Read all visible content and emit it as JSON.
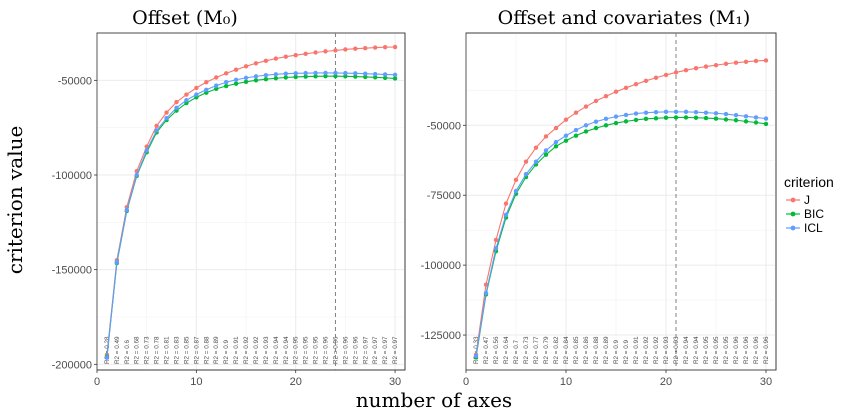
{
  "xlabel": "number of axes",
  "ylabel": "criterion value",
  "legend": {
    "title": "criterion",
    "entries": [
      {
        "name": "J",
        "color": "#F8766D"
      },
      {
        "name": "BIC",
        "color": "#00BA38"
      },
      {
        "name": "ICL",
        "color": "#619CFF"
      }
    ]
  },
  "chart_data": [
    {
      "type": "line",
      "title": "Offset (M₀)",
      "xlabel": "number of axes",
      "ylabel": "criterion value",
      "xlim": [
        0,
        31
      ],
      "ylim": [
        -203000,
        -25000
      ],
      "x_ticks": [
        0,
        10,
        20,
        30
      ],
      "y_ticks": [
        -200000,
        -150000,
        -100000,
        -50000
      ],
      "y_tick_labels": [
        "-200000",
        "-150000",
        "-100000",
        "-50000"
      ],
      "grid": true,
      "vline_x": 24,
      "x": [
        1,
        2,
        3,
        4,
        5,
        6,
        7,
        8,
        9,
        10,
        11,
        12,
        13,
        14,
        15,
        16,
        17,
        18,
        19,
        20,
        21,
        22,
        23,
        24,
        25,
        26,
        27,
        28,
        29,
        30
      ],
      "series": [
        {
          "name": "J",
          "color": "#F8766D",
          "values": [
            -195000,
            -145000,
            -117000,
            -98000,
            -85000,
            -74000,
            -67000,
            -61500,
            -57500,
            -54000,
            -51000,
            -48500,
            -46300,
            -44400,
            -42600,
            -41000,
            -39700,
            -38500,
            -37500,
            -36700,
            -36000,
            -35300,
            -34700,
            -34200,
            -33700,
            -33300,
            -33000,
            -32700,
            -32500,
            -32400
          ]
        },
        {
          "name": "BIC",
          "color": "#00BA38",
          "values": [
            -196000,
            -146500,
            -119000,
            -100500,
            -88000,
            -77500,
            -71000,
            -66000,
            -62000,
            -59000,
            -56500,
            -54500,
            -53000,
            -51800,
            -50800,
            -50000,
            -49400,
            -48900,
            -48500,
            -48200,
            -48000,
            -47900,
            -47800,
            -47800,
            -47900,
            -48000,
            -48200,
            -48400,
            -48700,
            -49000
          ]
        },
        {
          "name": "ICL",
          "color": "#619CFF",
          "values": [
            -196500,
            -146000,
            -118500,
            -100000,
            -87000,
            -76500,
            -70000,
            -64500,
            -60500,
            -57500,
            -55000,
            -52800,
            -51000,
            -49700,
            -48700,
            -47900,
            -47300,
            -46800,
            -46500,
            -46300,
            -46200,
            -46100,
            -46100,
            -46100,
            -46200,
            -46300,
            -46500,
            -46700,
            -46900,
            -47100
          ]
        }
      ],
      "r2_labels": [
        "R2 = 0.28",
        "R2 = 0.49",
        "R2 = 0.6",
        "R2 = 0.68",
        "R2 = 0.73",
        "R2 = 0.78",
        "R2 = 0.81",
        "R2 = 0.83",
        "R2 = 0.85",
        "R2 = 0.87",
        "R2 = 0.88",
        "R2 = 0.89",
        "R2 = 0.9",
        "R2 = 0.91",
        "R2 = 0.92",
        "R2 = 0.92",
        "R2 = 0.93",
        "R2 = 0.94",
        "R2 = 0.94",
        "R2 = 0.95",
        "R2 = 0.95",
        "R2 = 0.95",
        "R2 = 0.96",
        "R2 = 0.96",
        "R2 = 0.96",
        "R2 = 0.96",
        "R2 = 0.97",
        "R2 = 0.97",
        "R2 = 0.97",
        "R2 = 0.97"
      ]
    },
    {
      "type": "line",
      "title": "Offset and covariates (M₁)",
      "xlabel": "number of axes",
      "ylabel": "criterion value",
      "xlim": [
        0,
        31
      ],
      "ylim": [
        -137500,
        -17000
      ],
      "x_ticks": [
        0,
        10,
        20,
        30
      ],
      "y_ticks": [
        -125000,
        -100000,
        -75000,
        -50000
      ],
      "y_tick_labels": [
        "-125000",
        "-100000",
        "-75000",
        "-50000"
      ],
      "grid": true,
      "vline_x": 21,
      "x": [
        1,
        2,
        3,
        4,
        5,
        6,
        7,
        8,
        9,
        10,
        11,
        12,
        13,
        14,
        15,
        16,
        17,
        18,
        19,
        20,
        21,
        22,
        23,
        24,
        25,
        26,
        27,
        28,
        29,
        30
      ],
      "series": [
        {
          "name": "J",
          "color": "#F8766D",
          "values": [
            -132000,
            -107000,
            -91000,
            -78000,
            -69500,
            -63000,
            -58000,
            -54000,
            -51000,
            -48000,
            -45500,
            -43300,
            -41300,
            -39600,
            -38000,
            -36600,
            -35300,
            -34100,
            -33000,
            -32000,
            -31100,
            -30300,
            -29600,
            -29000,
            -28500,
            -28000,
            -27600,
            -27300,
            -27000,
            -26800
          ]
        },
        {
          "name": "BIC",
          "color": "#00BA38",
          "values": [
            -133000,
            -110500,
            -95000,
            -83000,
            -74500,
            -68500,
            -64000,
            -60500,
            -57500,
            -55500,
            -53700,
            -52200,
            -51000,
            -50000,
            -49200,
            -48600,
            -48100,
            -47700,
            -47500,
            -47300,
            -47200,
            -47200,
            -47300,
            -47400,
            -47600,
            -47900,
            -48200,
            -48600,
            -49000,
            -49500
          ]
        },
        {
          "name": "ICL",
          "color": "#619CFF",
          "values": [
            -132500,
            -110000,
            -94000,
            -82000,
            -73500,
            -67500,
            -63000,
            -59000,
            -56000,
            -53700,
            -51700,
            -50000,
            -48700,
            -47700,
            -46900,
            -46300,
            -45800,
            -45500,
            -45300,
            -45200,
            -45200,
            -45200,
            -45300,
            -45500,
            -45700,
            -46000,
            -46400,
            -46800,
            -47200,
            -47600
          ]
        }
      ],
      "r2_labels": [
        "R2 = 0.33",
        "R2 = 0.47",
        "R2 = 0.56",
        "R2 = 0.64",
        "R2 = 0.7",
        "R2 = 0.73",
        "R2 = 0.77",
        "R2 = 0.79",
        "R2 = 0.82",
        "R2 = 0.84",
        "R2 = 0.85",
        "R2 = 0.86",
        "R2 = 0.88",
        "R2 = 0.89",
        "R2 = 0.9",
        "R2 = 0.9",
        "R2 = 0.91",
        "R2 = 0.92",
        "R2 = 0.92",
        "R2 = 0.93",
        "R2 = 0.93",
        "R2 = 0.94",
        "R2 = 0.94",
        "R2 = 0.95",
        "R2 = 0.95",
        "R2 = 0.95",
        "R2 = 0.96",
        "R2 = 0.96",
        "R2 = 0.96",
        "R2 = 0.96"
      ]
    }
  ]
}
